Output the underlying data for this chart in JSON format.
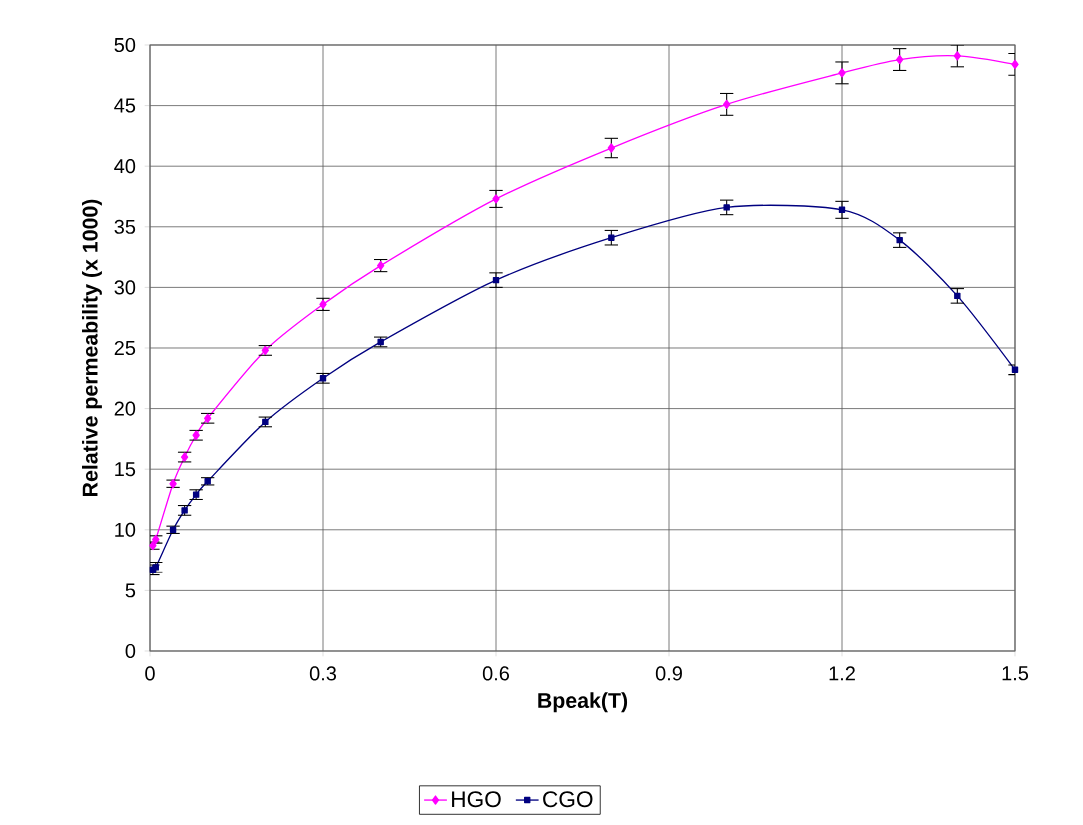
{
  "chart_data": {
    "type": "line",
    "xlabel": "Bpeak(T)",
    "ylabel": "Relative permeability (x 1000)",
    "x": [
      0.005,
      0.01,
      0.04,
      0.06,
      0.08,
      0.1,
      0.2,
      0.3,
      0.4,
      0.6,
      0.8,
      1.0,
      1.2,
      1.3,
      1.4,
      1.5
    ],
    "series": [
      {
        "name": "HGO",
        "color": "#ff00ff",
        "marker": "diamond",
        "values": [
          8.7,
          9.2,
          13.8,
          16.0,
          17.8,
          19.2,
          24.8,
          28.6,
          31.8,
          37.3,
          41.5,
          45.1,
          47.7,
          48.8,
          49.1,
          48.4
        ],
        "errors": [
          0.3,
          0.3,
          0.3,
          0.4,
          0.4,
          0.4,
          0.4,
          0.5,
          0.5,
          0.7,
          0.8,
          0.9,
          0.9,
          0.9,
          0.9,
          0.9
        ]
      },
      {
        "name": "CGO",
        "color": "#000080",
        "marker": "square",
        "values": [
          6.7,
          6.9,
          10.0,
          11.6,
          12.9,
          14.0,
          18.9,
          22.5,
          25.5,
          30.6,
          34.1,
          36.6,
          36.4,
          33.9,
          29.3,
          23.2
        ],
        "errors": [
          0.4,
          0.4,
          0.3,
          0.4,
          0.4,
          0.3,
          0.4,
          0.4,
          0.4,
          0.6,
          0.6,
          0.6,
          0.7,
          0.6,
          0.6,
          0.4
        ]
      }
    ],
    "xlim": [
      0,
      1.5
    ],
    "xticks": [
      0,
      0.3,
      0.6,
      0.9,
      1.2,
      1.5
    ],
    "ylim": [
      0,
      50
    ],
    "yticks": [
      0,
      5,
      10,
      15,
      20,
      25,
      30,
      35,
      40,
      45,
      50
    ],
    "grid": true,
    "legend": "bottom",
    "line_style": "solid"
  }
}
